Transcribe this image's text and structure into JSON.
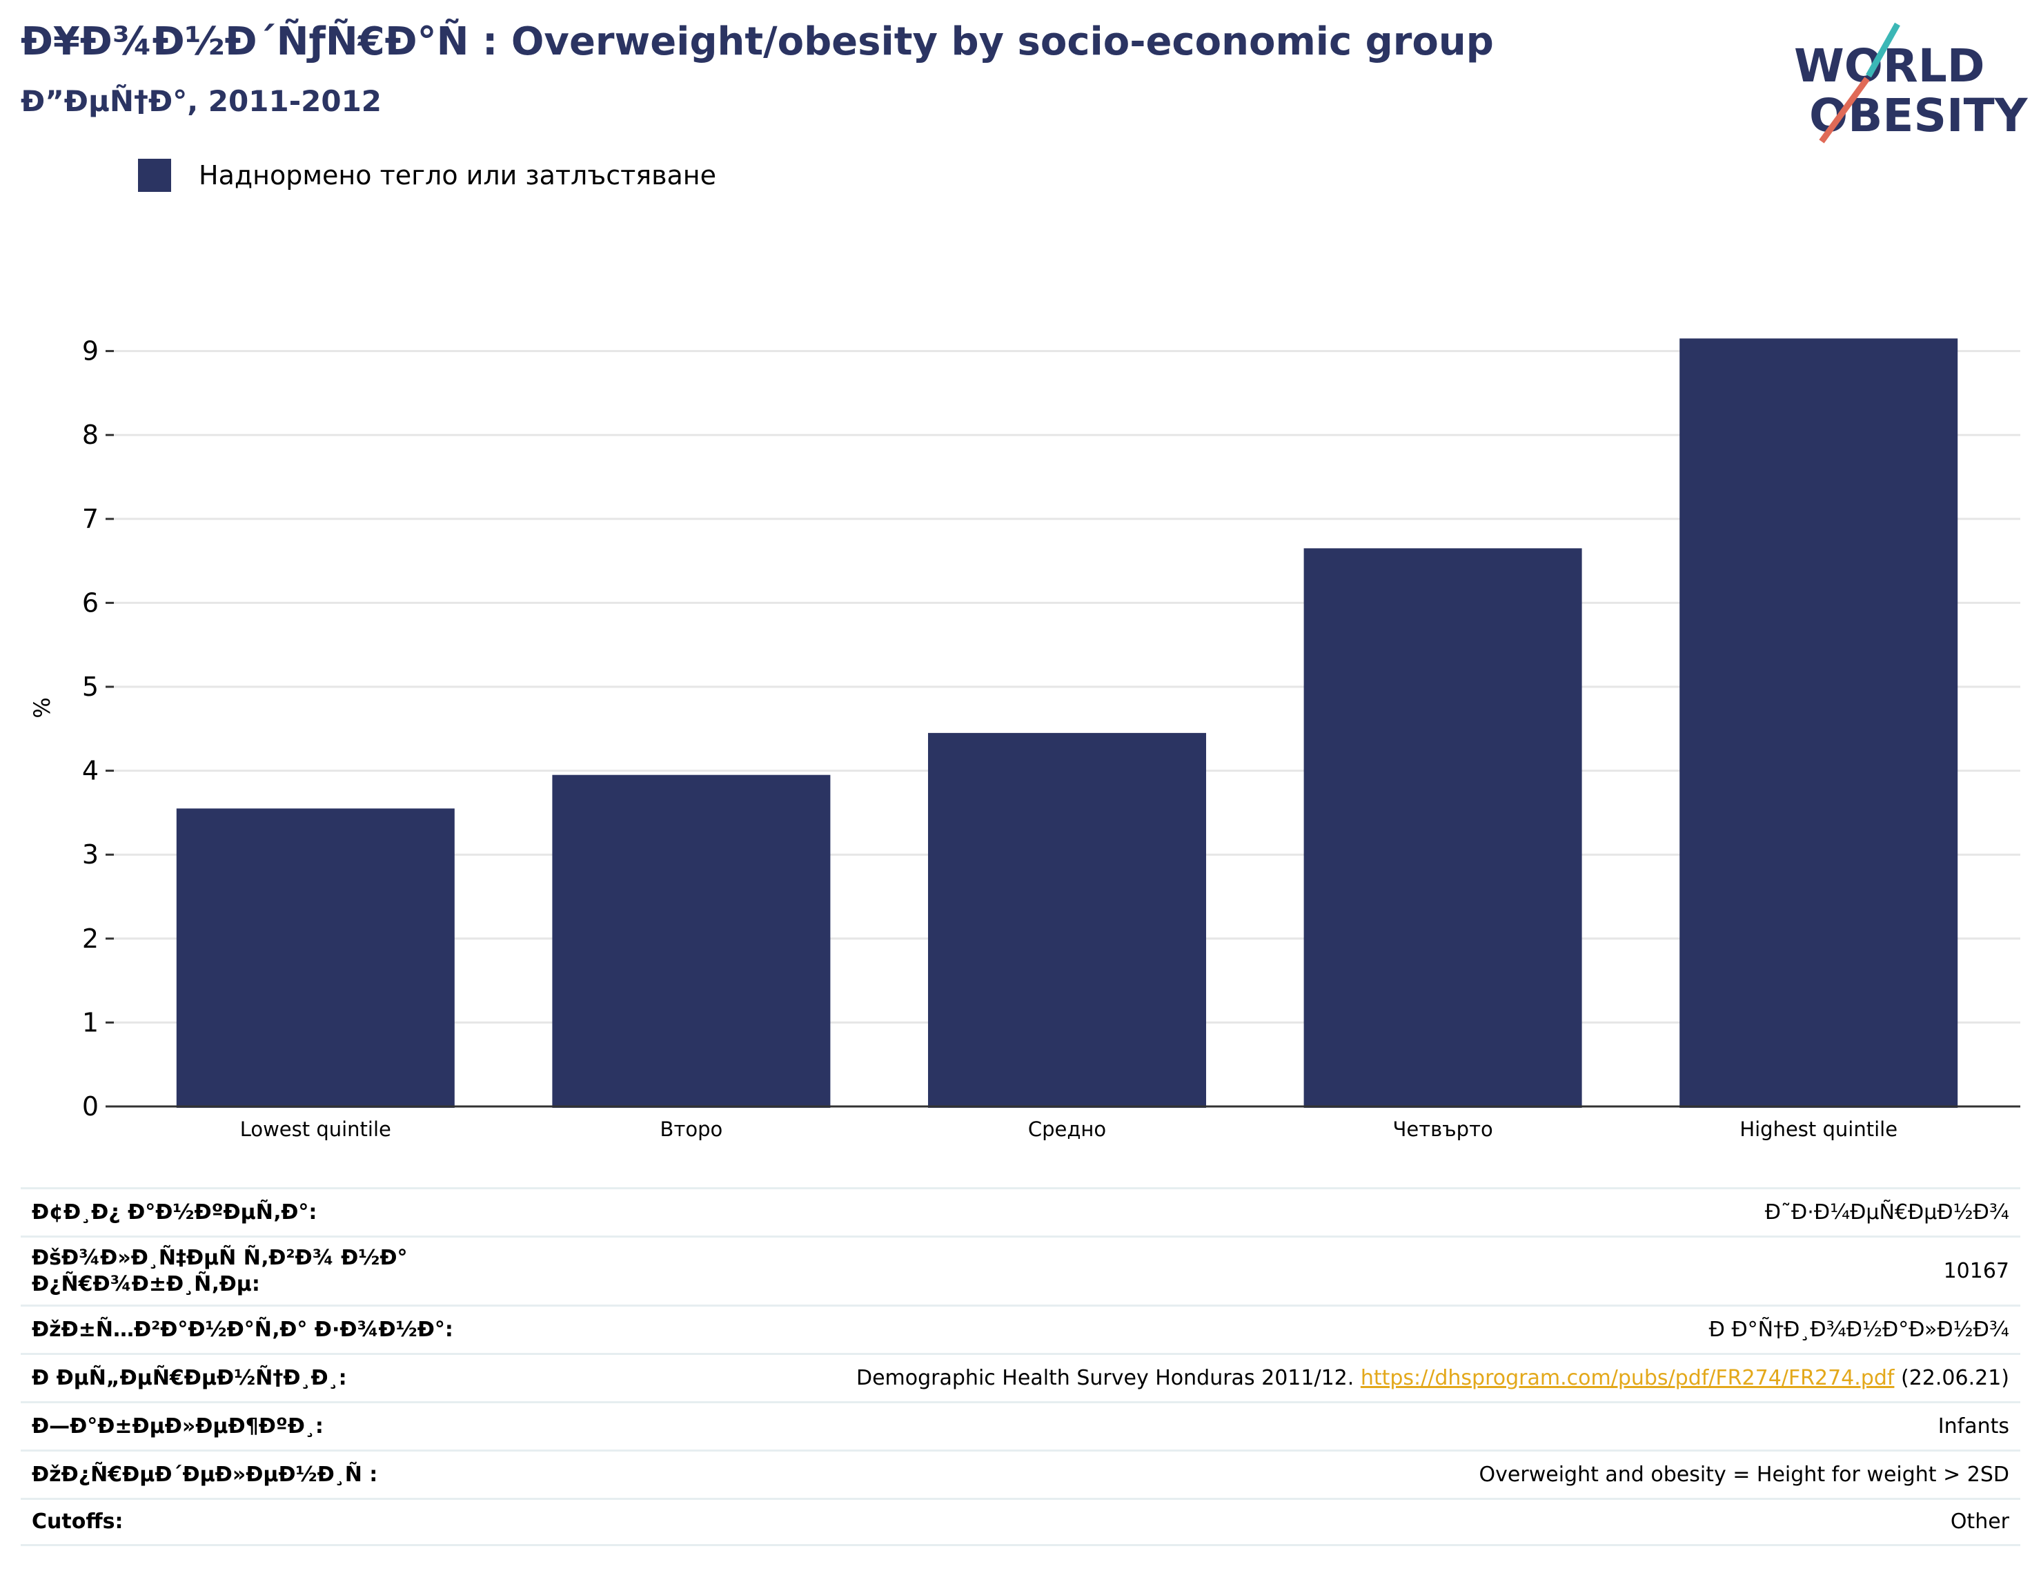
{
  "header": {
    "title": "Ð¥Ð¾Ð½Ð´ÑƒÑ€Ð°Ñ : Overweight/obesity by socio-economic group",
    "subtitle": "Ð”ÐµÑ†Ð°, 2011-2012",
    "logo_line1": "WORLD",
    "logo_line2": "OBESITY"
  },
  "legend": {
    "label": "Наднормено тегло или затлъстяване",
    "color": "#2b3462"
  },
  "chart_data": {
    "type": "bar",
    "categories": [
      "Lowest quintile",
      "Второ",
      "Средно",
      "Четвърто",
      "Highest quintile"
    ],
    "series": [
      {
        "name": "Наднормено тегло или затлъстяване",
        "values": [
          3.55,
          3.95,
          4.45,
          6.65,
          9.15
        ]
      }
    ],
    "ylabel": "%",
    "ylim": [
      0,
      9.5
    ],
    "yticks": [
      0,
      1,
      2,
      3,
      4,
      5,
      6,
      7,
      8,
      9
    ],
    "grid": true,
    "legend": "top-left",
    "bar_color": "#2b3462"
  },
  "meta": {
    "rows": [
      {
        "key": "Ð¢Ð¸Ð¿ Ð°Ð½ÐºÐµÑ‚Ð°:",
        "value": "Ð˜Ð·Ð¼ÐµÑ€ÐµÐ½Ð¾"
      },
      {
        "key": "ÐšÐ¾Ð»Ð¸Ñ‡ÐµÑ Ñ‚Ð²Ð¾ Ð½Ð° Ð¿Ñ€Ð¾Ð±Ð¸Ñ‚Ðµ:",
        "value": "10167"
      },
      {
        "key": "ÐžÐ±Ñ…Ð²Ð°Ð½Ð°Ñ‚Ð° Ð·Ð¾Ð½Ð°:",
        "value": "Ð Ð°Ñ†Ð¸Ð¾Ð½Ð°Ð»Ð½Ð¾"
      },
      {
        "key": "Ð ÐµÑ„ÐµÑ€ÐµÐ½Ñ†Ð¸Ð¸:",
        "value": "Demographic Health Survey Honduras 2011/12.",
        "link": "https://dhsprogram.com/pubs/pdf/FR274/FR274.pdf",
        "suffix": "(22.06.21)"
      },
      {
        "key": "Ð—Ð°Ð±ÐµÐ»ÐµÐ¶ÐºÐ¸:",
        "value": "Infants"
      },
      {
        "key": "ÐžÐ¿Ñ€ÐµÐ´ÐµÐ»ÐµÐ½Ð¸Ñ :",
        "value": "Overweight and obesity = Height for weight > 2SD"
      },
      {
        "key": "Cutoffs:",
        "value": "Other"
      }
    ]
  }
}
